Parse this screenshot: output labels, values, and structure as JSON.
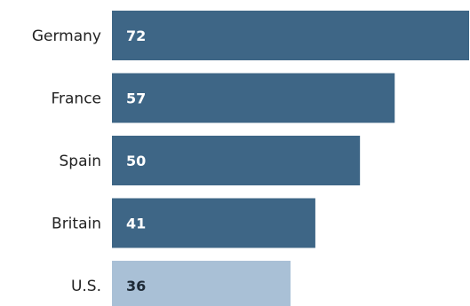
{
  "colors": {
    "bar_default": "#3e6686",
    "bar_highlight": "#a9c0d6",
    "label_on_default": "#ffffff",
    "label_on_highlight": "#1e2a36",
    "category_text": "#222222"
  },
  "chart_data": {
    "type": "bar",
    "orientation": "horizontal",
    "categories": [
      "Germany",
      "France",
      "Spain",
      "Britain",
      "U.S."
    ],
    "values": [
      72,
      57,
      50,
      41,
      36
    ],
    "value_labels": [
      "72",
      "57",
      "50",
      "41",
      "36"
    ],
    "highlight": [
      "U.S."
    ],
    "title": "",
    "xlabel": "",
    "ylabel": "",
    "grid": false,
    "legend": "none"
  }
}
